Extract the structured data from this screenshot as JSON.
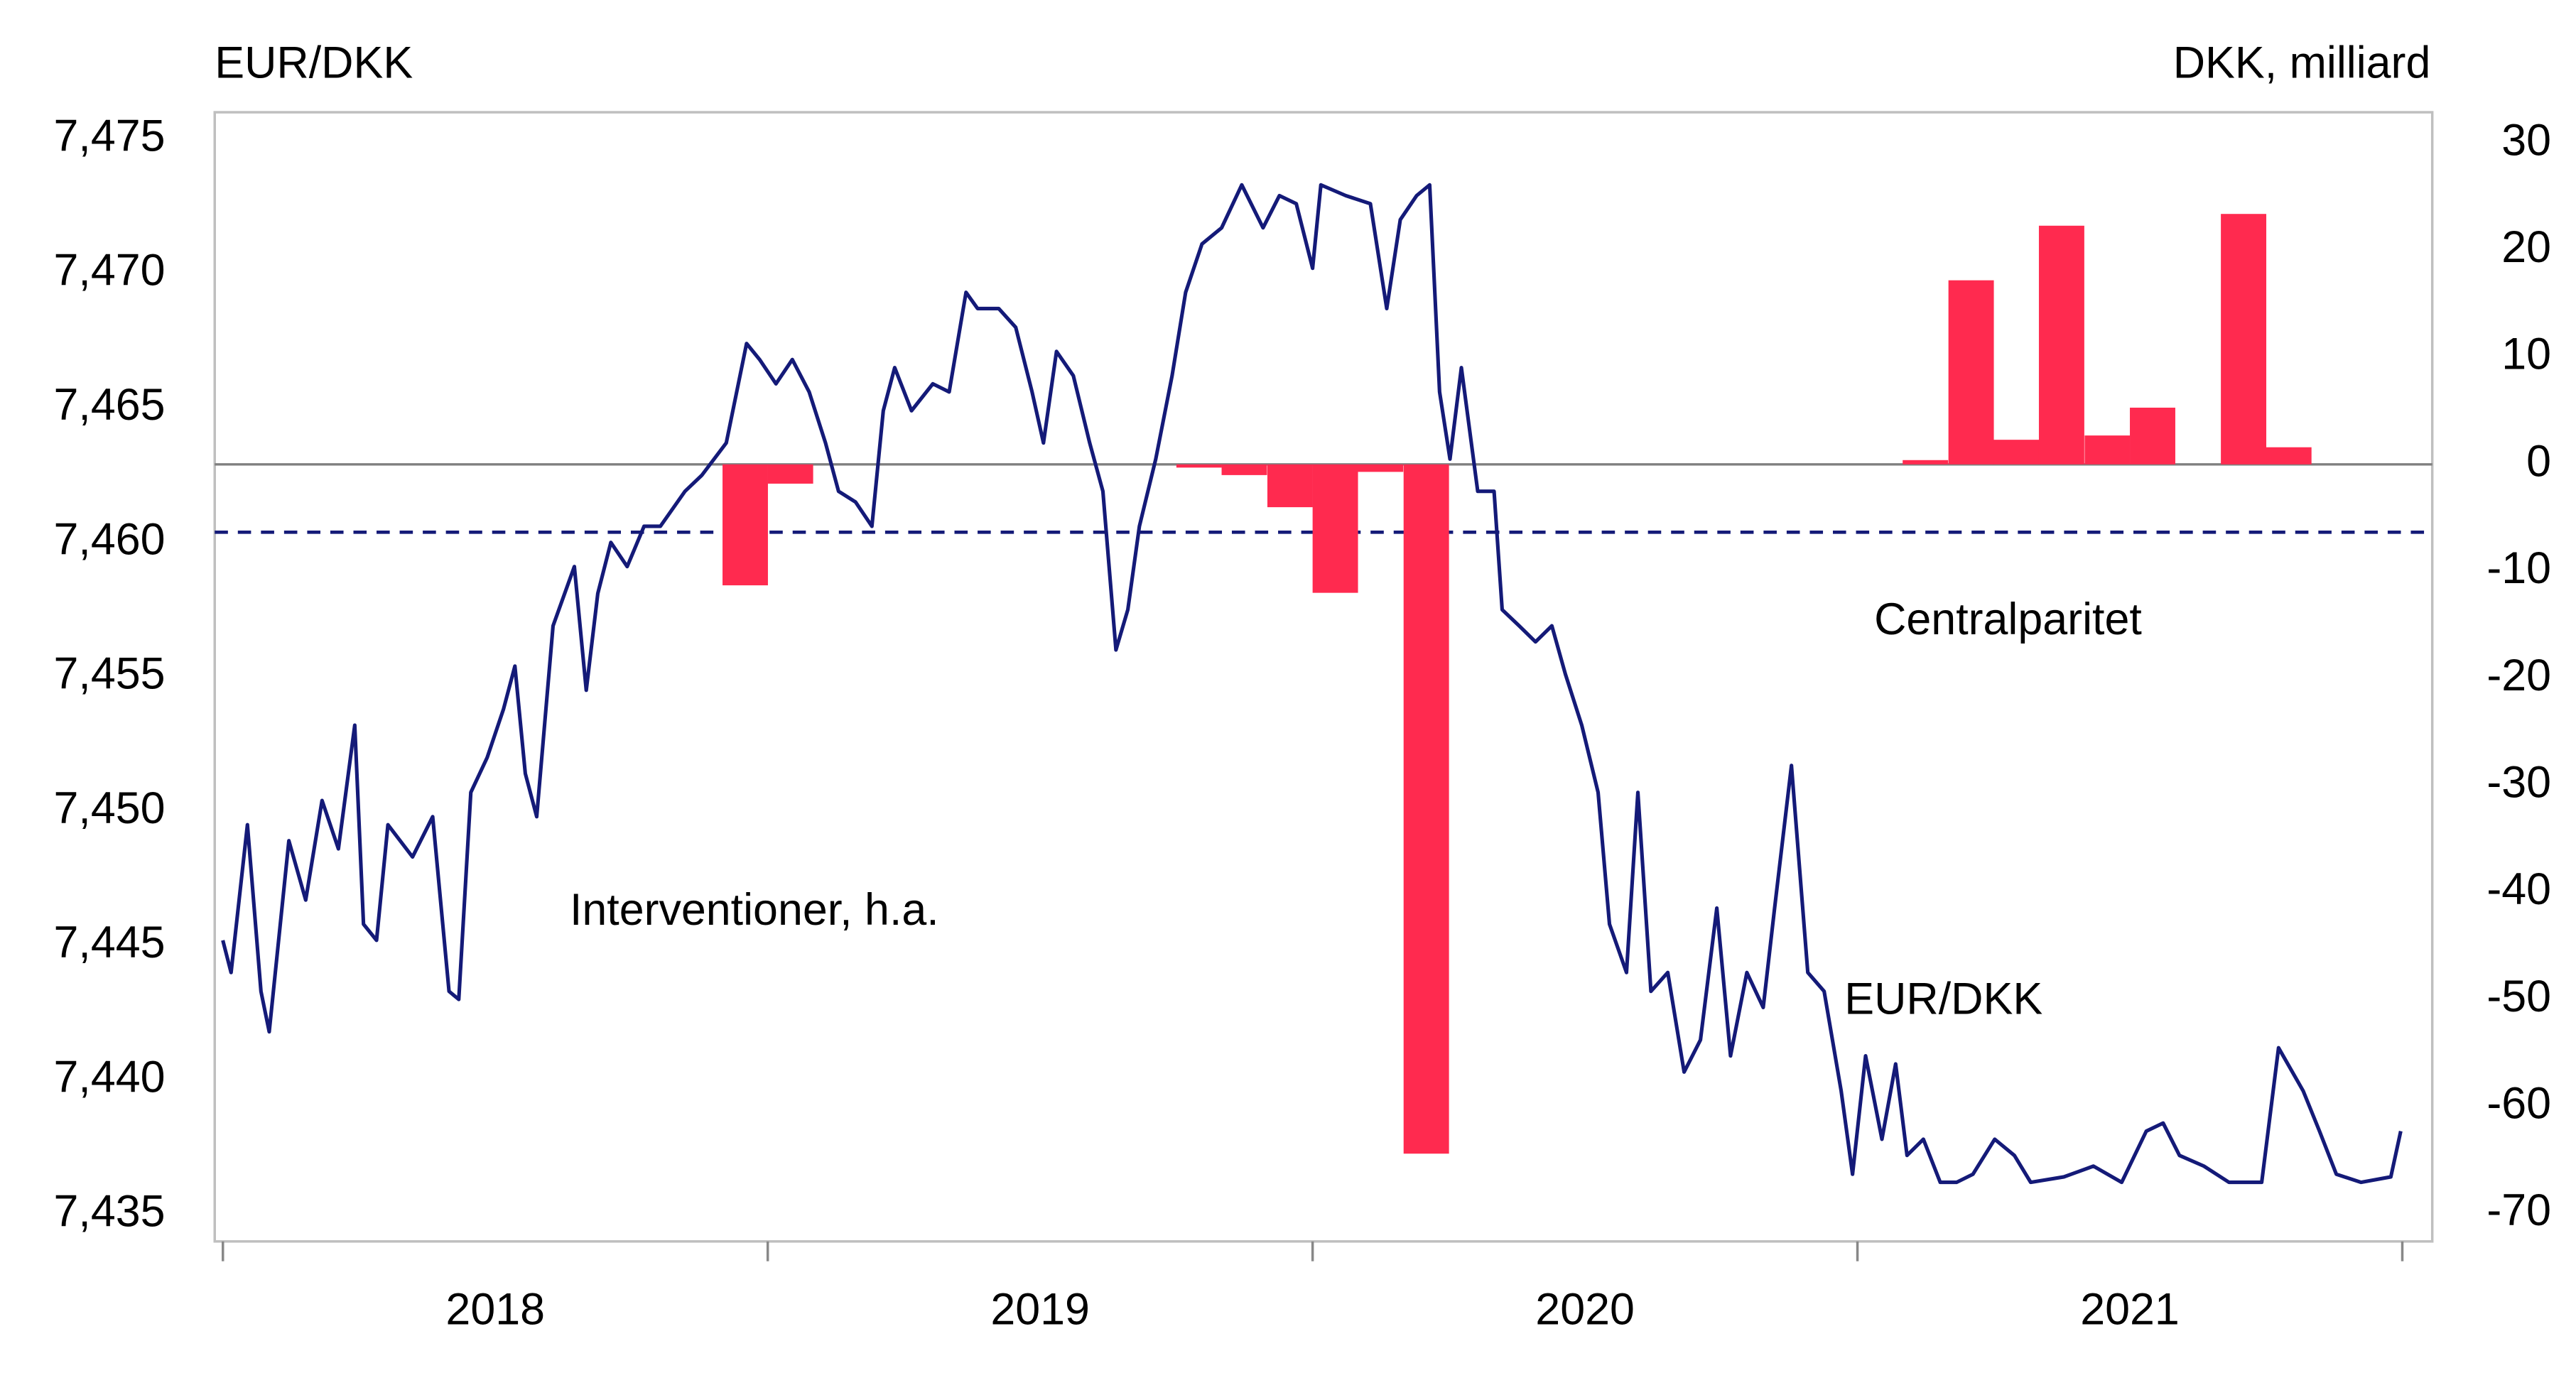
{
  "chart_data": {
    "type": "line",
    "y_label": "EUR/DKK",
    "y2_label": "DKK, milliard",
    "xlim": [
      2017.985,
      2022.055
    ],
    "xticks": [
      {
        "value": 2018.5,
        "label": "2018"
      },
      {
        "value": 2019.5,
        "label": "2019"
      },
      {
        "value": 2020.5,
        "label": "2020"
      },
      {
        "value": 2021.5,
        "label": "2021"
      }
    ],
    "xtick_marks": [
      2018,
      2019,
      2020,
      2021,
      2022
    ],
    "ylim": [
      7.434,
      7.476
    ],
    "yticks": [
      {
        "value": 7.435,
        "label": "7,435"
      },
      {
        "value": 7.44,
        "label": "7,440"
      },
      {
        "value": 7.445,
        "label": "7,445"
      },
      {
        "value": 7.45,
        "label": "7,450"
      },
      {
        "value": 7.455,
        "label": "7,455"
      },
      {
        "value": 7.46,
        "label": "7,460"
      },
      {
        "value": 7.465,
        "label": "7,465"
      },
      {
        "value": 7.47,
        "label": "7,470"
      },
      {
        "value": 7.475,
        "label": "7,475"
      }
    ],
    "y2lim": [
      -72.6,
      32.9
    ],
    "y2ticks": [
      -70,
      -60,
      -50,
      -40,
      -30,
      -20,
      -10,
      0,
      10,
      20,
      30
    ],
    "reference_line": {
      "value": 7.46038,
      "label": "Centralparitet",
      "color": "#141a78"
    },
    "series": [
      {
        "name": "EUR/DKK",
        "type": "line",
        "color": "#141a78",
        "x": [
          2018.0,
          2018.015,
          2018.045,
          2018.07,
          2018.085,
          2018.121,
          2018.152,
          2018.182,
          2018.212,
          2018.242,
          2018.258,
          2018.282,
          2018.303,
          2018.348,
          2018.385,
          2018.415,
          2018.433,
          2018.455,
          2018.485,
          2018.515,
          2018.536,
          2018.555,
          2018.576,
          2018.606,
          2018.645,
          2018.667,
          2018.688,
          2018.712,
          2018.742,
          2018.773,
          2018.803,
          2018.848,
          2018.879,
          2018.924,
          2018.961,
          2018.985,
          2019.015,
          2019.045,
          2019.076,
          2019.106,
          2019.13,
          2019.161,
          2019.191,
          2019.212,
          2019.233,
          2019.264,
          2019.303,
          2019.333,
          2019.364,
          2019.385,
          2019.424,
          2019.455,
          2019.485,
          2019.506,
          2019.53,
          2019.561,
          2019.591,
          2019.615,
          2019.639,
          2019.661,
          2019.682,
          2019.712,
          2019.742,
          2019.767,
          2019.797,
          2019.833,
          2019.87,
          2019.909,
          2019.939,
          2019.97,
          2020.0,
          2020.015,
          2020.061,
          2020.106,
          2020.136,
          2020.161,
          2020.191,
          2020.215,
          2020.233,
          2020.252,
          2020.273,
          2020.303,
          2020.333,
          2020.348,
          2020.379,
          2020.409,
          2020.439,
          2020.464,
          2020.494,
          2020.524,
          2020.545,
          2020.576,
          2020.597,
          2020.621,
          2020.652,
          2020.682,
          2020.712,
          2020.742,
          2020.767,
          2020.797,
          2020.827,
          2020.848,
          2020.879,
          2020.909,
          2020.939,
          2020.97,
          2020.991,
          2021.015,
          2021.045,
          2021.07,
          2021.091,
          2021.121,
          2021.152,
          2021.182,
          2021.212,
          2021.252,
          2021.288,
          2021.318,
          2021.379,
          2021.433,
          2021.485,
          2021.53,
          2021.561,
          2021.591,
          2021.636,
          2021.682,
          2021.742,
          2021.773,
          2021.818,
          2021.848,
          2021.879,
          2021.924,
          2021.979,
          2021.997
        ],
        "values": [
          7.4452,
          7.444,
          7.4495,
          7.4433,
          7.4418,
          7.4489,
          7.4467,
          7.4504,
          7.4486,
          7.4532,
          7.4458,
          7.4452,
          7.4495,
          7.4483,
          7.4498,
          7.4433,
          7.443,
          7.4507,
          7.452,
          7.4538,
          7.4554,
          7.4514,
          7.4498,
          7.4569,
          7.4591,
          7.4545,
          7.4581,
          7.46,
          7.4591,
          7.4606,
          7.4606,
          7.4619,
          7.4625,
          7.4637,
          7.4674,
          7.4668,
          7.4659,
          7.4668,
          7.4656,
          7.4637,
          7.4619,
          7.4615,
          7.4606,
          7.4649,
          7.4665,
          7.4649,
          7.4659,
          7.4656,
          7.4693,
          7.4687,
          7.4687,
          7.468,
          7.4656,
          7.4637,
          7.4671,
          7.4662,
          7.4637,
          7.4619,
          7.456,
          7.4575,
          7.4606,
          7.4631,
          7.4662,
          7.4693,
          7.4711,
          7.4717,
          7.4733,
          7.4717,
          7.4729,
          7.4726,
          7.4702,
          7.4733,
          7.4729,
          7.4726,
          7.4687,
          7.472,
          7.4729,
          7.4733,
          7.4656,
          7.4631,
          7.4665,
          7.4619,
          7.4619,
          7.4575,
          7.4569,
          7.4563,
          7.4569,
          7.4551,
          7.4532,
          7.4507,
          7.4458,
          7.444,
          7.4507,
          7.4433,
          7.444,
          7.4403,
          7.4415,
          7.4464,
          7.4409,
          7.444,
          7.4427,
          7.4464,
          7.4517,
          7.444,
          7.4433,
          7.4396,
          7.4365,
          7.4409,
          7.4378,
          7.4406,
          7.4372,
          7.4378,
          7.4362,
          7.4362,
          7.4365,
          7.4378,
          7.4372,
          7.4362,
          7.4364,
          7.4368,
          7.4362,
          7.4381,
          7.4384,
          7.4372,
          7.4368,
          7.4362,
          7.4362,
          7.4412,
          7.4396,
          7.4381,
          7.4365,
          7.4362,
          7.4364,
          7.4381
        ]
      },
      {
        "name": "Interventioner, h.a.",
        "type": "bar",
        "axis": "y2",
        "color": "#ff2a4f",
        "x": [
          2018.917,
          2019.0,
          2019.75,
          2019.833,
          2019.917,
          2020.0,
          2020.083,
          2020.167,
          2021.083,
          2021.167,
          2021.25,
          2021.333,
          2021.417,
          2021.5,
          2021.667,
          2021.75
        ],
        "values": [
          -11.3,
          -1.8,
          -0.3,
          -1,
          -4,
          -12,
          -0.7,
          -64.4,
          0.4,
          17.2,
          2.3,
          22.3,
          2.7,
          5.3,
          23.4,
          1.6
        ]
      }
    ]
  }
}
